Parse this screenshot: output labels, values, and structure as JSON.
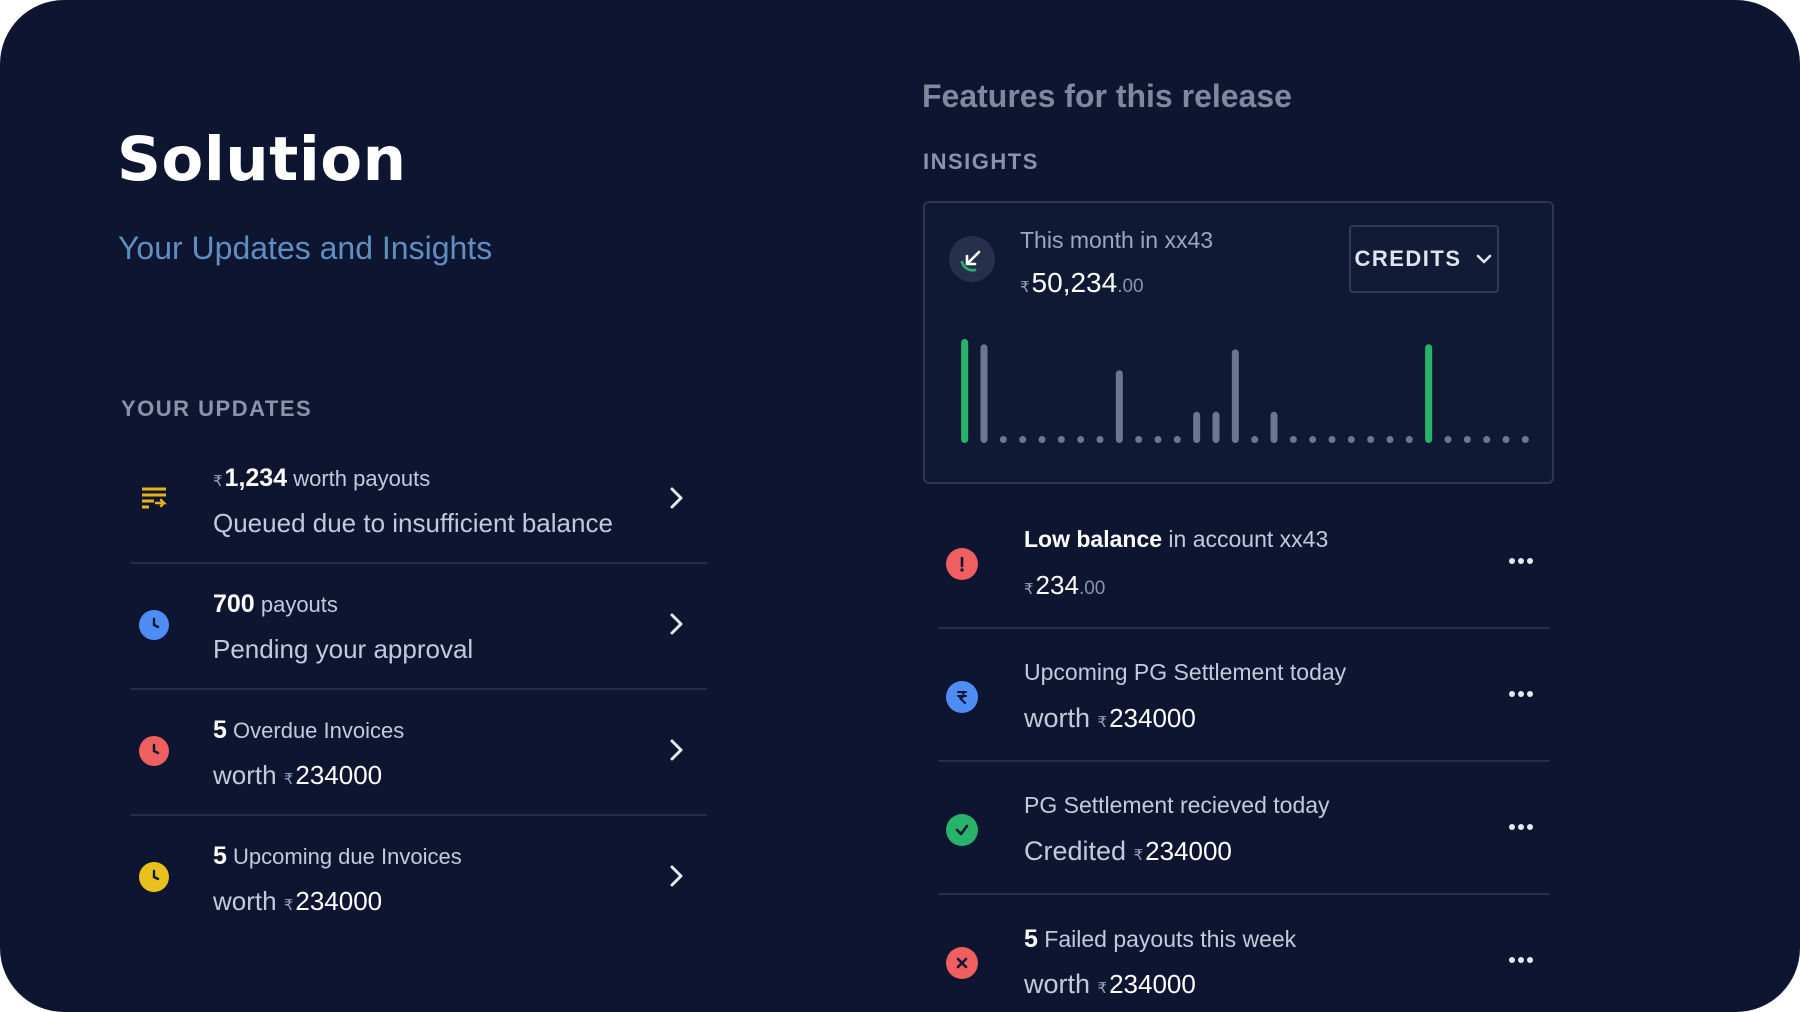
{
  "left": {
    "title": "Solution",
    "subtitle": "Your Updates and Insights",
    "updates_label": "YOUR UPDATES",
    "updates": [
      {
        "icon": "payout-queue-icon",
        "color": "#e8b21d",
        "rupee": "₹",
        "num": "1,234",
        "l1_suffix": "worth payouts",
        "l2_prefix": "",
        "l2_amount": "",
        "l2_text": "Queued due to insufficient balance"
      },
      {
        "icon": "clock-icon",
        "color": "#4f8df5",
        "rupee": "",
        "num": "700",
        "l1_suffix": "payouts",
        "l2_prefix": "",
        "l2_amount": "",
        "l2_text": "Pending your approval"
      },
      {
        "icon": "clock-icon",
        "color": "#ef5f5f",
        "rupee": "",
        "num": "5",
        "l1_suffix": "Overdue Invoices",
        "l2_prefix": "worth",
        "l2_amount": "234000",
        "l2_text": ""
      },
      {
        "icon": "clock-icon",
        "color": "#e8c11d",
        "rupee": "",
        "num": "5",
        "l1_suffix": "Upcoming due Invoices",
        "l2_prefix": "worth",
        "l2_amount": "234000",
        "l2_text": ""
      }
    ]
  },
  "right": {
    "release_title": "Features for this release",
    "insights_label": "INSIGHTS",
    "card": {
      "label": "This month in xx43",
      "rupee": "₹",
      "amount": "50,234",
      "decimals": ".00",
      "dropdown_label": "CREDITS",
      "accent": "#27b36a",
      "muted": "#6d7690"
    },
    "insights": [
      {
        "icon": "alert-icon",
        "color": "#ef5f5f",
        "l1_bold": "Low balance",
        "l1_rest": " in account xx43",
        "l2_prefix": "",
        "l2_amount": "234",
        "l2_dec": ".00"
      },
      {
        "icon": "rupee-icon",
        "color": "#4f8df5",
        "l1_bold": "",
        "l1_rest": "Upcoming PG Settlement today",
        "l2_prefix": "worth",
        "l2_amount": "234000",
        "l2_dec": ""
      },
      {
        "icon": "check-icon",
        "color": "#27b36a",
        "l1_bold": "",
        "l1_rest": "PG Settlement recieved today",
        "l2_prefix": "Credited",
        "l2_amount": "234000",
        "l2_dec": ""
      },
      {
        "icon": "cross-icon",
        "color": "#ef5f5f",
        "l1_bold": "5",
        "l1_rest": " Failed payouts this week",
        "l2_prefix": "worth",
        "l2_amount": "234000",
        "l2_dec": ""
      }
    ]
  },
  "chart_data": {
    "type": "bar",
    "series": [
      {
        "values": [
          100,
          95,
          0,
          0,
          0,
          0,
          0,
          0,
          70,
          0,
          0,
          0,
          30,
          30,
          90,
          0,
          30,
          0,
          0,
          0,
          0,
          0,
          0,
          0,
          95,
          0,
          0,
          0,
          0,
          0
        ]
      }
    ],
    "highlight_indices": [
      0,
      24
    ],
    "ylim": [
      0,
      100
    ]
  }
}
